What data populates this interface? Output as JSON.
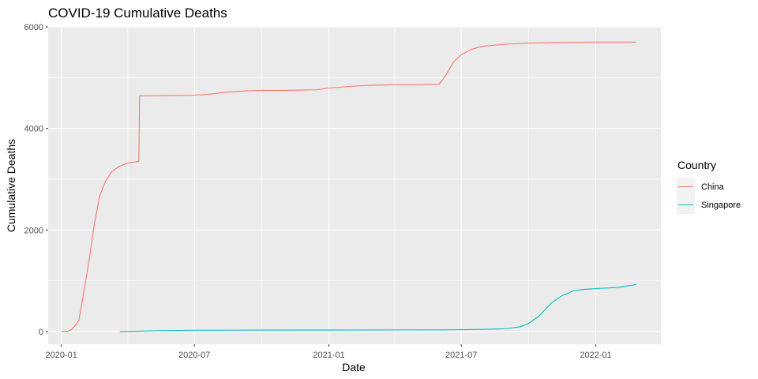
{
  "chart_data": {
    "type": "line",
    "title": "COVID-19 Cumulative Deaths",
    "xlabel": "Date",
    "ylabel": "Cumulative Deaths",
    "x_type": "date",
    "xlim": [
      "2019-12-14",
      "2022-03-31"
    ],
    "ylim": [
      -250,
      6000
    ],
    "x_ticks": [
      "2020-01-01",
      "2020-07-01",
      "2021-01-01",
      "2021-07-01",
      "2022-01-01"
    ],
    "x_tick_labels": [
      "2020-01",
      "2020-07",
      "2021-01",
      "2021-07",
      "2022-01"
    ],
    "y_ticks": [
      0,
      2000,
      4000,
      6000
    ],
    "y_tick_labels": [
      "0",
      "2000",
      "4000",
      "6000"
    ],
    "grid": true,
    "background": "#ebebeb",
    "legend": {
      "title": "Country",
      "position": "right"
    },
    "series": [
      {
        "name": "China",
        "color": "#f8766d",
        "points": [
          [
            "2020-01-01",
            0
          ],
          [
            "2020-01-10",
            5
          ],
          [
            "2020-01-15",
            40
          ],
          [
            "2020-01-20",
            120
          ],
          [
            "2020-01-25",
            220
          ],
          [
            "2020-02-01",
            800
          ],
          [
            "2020-02-08",
            1400
          ],
          [
            "2020-02-15",
            2100
          ],
          [
            "2020-02-22",
            2650
          ],
          [
            "2020-03-01",
            2950
          ],
          [
            "2020-03-10",
            3150
          ],
          [
            "2020-03-20",
            3250
          ],
          [
            "2020-04-01",
            3320
          ],
          [
            "2020-04-16",
            3350
          ],
          [
            "2020-04-17",
            4640
          ],
          [
            "2020-05-15",
            4645
          ],
          [
            "2020-06-30",
            4655
          ],
          [
            "2020-07-20",
            4670
          ],
          [
            "2020-08-10",
            4710
          ],
          [
            "2020-09-10",
            4740
          ],
          [
            "2020-10-01",
            4750
          ],
          [
            "2020-11-01",
            4750
          ],
          [
            "2020-12-15",
            4760
          ],
          [
            "2021-01-01",
            4795
          ],
          [
            "2021-02-01",
            4830
          ],
          [
            "2021-03-01",
            4850
          ],
          [
            "2021-04-01",
            4860
          ],
          [
            "2021-05-01",
            4860
          ],
          [
            "2021-06-01",
            4870
          ],
          [
            "2021-06-10",
            5050
          ],
          [
            "2021-06-20",
            5300
          ],
          [
            "2021-07-01",
            5450
          ],
          [
            "2021-07-15",
            5560
          ],
          [
            "2021-08-01",
            5620
          ],
          [
            "2021-09-01",
            5660
          ],
          [
            "2021-10-01",
            5680
          ],
          [
            "2021-11-01",
            5690
          ],
          [
            "2022-01-01",
            5700
          ],
          [
            "2022-02-25",
            5700
          ]
        ]
      },
      {
        "name": "Singapore",
        "color": "#00bfc4",
        "points": [
          [
            "2020-03-21",
            0
          ],
          [
            "2020-04-10",
            5
          ],
          [
            "2020-05-15",
            18
          ],
          [
            "2020-07-01",
            26
          ],
          [
            "2021-01-01",
            29
          ],
          [
            "2021-06-01",
            33
          ],
          [
            "2021-07-01",
            36
          ],
          [
            "2021-08-01",
            42
          ],
          [
            "2021-09-01",
            57
          ],
          [
            "2021-09-20",
            95
          ],
          [
            "2021-10-01",
            160
          ],
          [
            "2021-10-15",
            300
          ],
          [
            "2021-11-01",
            560
          ],
          [
            "2021-11-15",
            700
          ],
          [
            "2021-12-01",
            800
          ],
          [
            "2021-12-15",
            830
          ],
          [
            "2022-01-01",
            845
          ],
          [
            "2022-02-01",
            870
          ],
          [
            "2022-02-25",
            925
          ]
        ]
      }
    ]
  }
}
